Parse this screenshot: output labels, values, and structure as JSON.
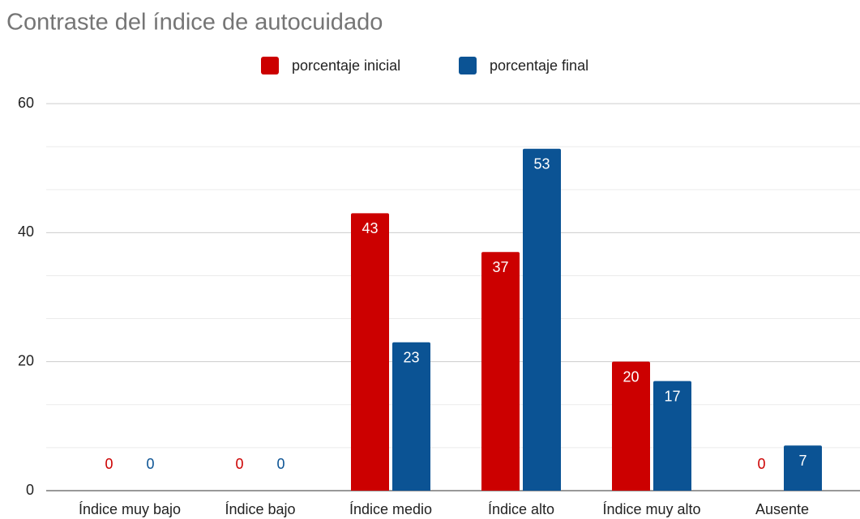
{
  "chart_data": {
    "type": "bar",
    "title": "Contraste del índice de autocuidado",
    "categories": [
      "Índice muy bajo",
      "Índice bajo",
      "Índice medio",
      "Índice alto",
      "Índice muy alto",
      "Ausente"
    ],
    "series": [
      {
        "name": "porcentaje inicial",
        "color": "#cc0000",
        "values": [
          0,
          0,
          43,
          37,
          20,
          0
        ]
      },
      {
        "name": "porcentaje final",
        "color": "#0b5394",
        "values": [
          0,
          0,
          23,
          53,
          17,
          7
        ]
      }
    ],
    "ylim": [
      0,
      60
    ],
    "yticks": [
      0,
      20,
      40,
      60
    ],
    "grid": true,
    "legend": "top"
  }
}
